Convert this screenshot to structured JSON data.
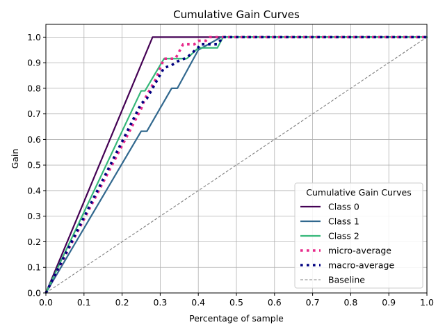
{
  "chart_data": {
    "type": "line",
    "title": "Cumulative Gain Curves",
    "xlabel": "Percentage of sample",
    "ylabel": "Gain",
    "xlim": [
      0,
      1
    ],
    "ylim": [
      0,
      1.05
    ],
    "xticks": [
      "0.0",
      "0.1",
      "0.2",
      "0.3",
      "0.4",
      "0.5",
      "0.6",
      "0.7",
      "0.8",
      "0.9",
      "1.0"
    ],
    "yticks": [
      "0.0",
      "0.1",
      "0.2",
      "0.3",
      "0.4",
      "0.5",
      "0.6",
      "0.7",
      "0.8",
      "0.9",
      "1.0"
    ],
    "xtick_values": [
      0,
      0.1,
      0.2,
      0.3,
      0.4,
      0.5,
      0.6,
      0.7,
      0.8,
      0.9,
      1.0
    ],
    "ytick_values": [
      0,
      0.1,
      0.2,
      0.3,
      0.4,
      0.5,
      0.6,
      0.7,
      0.8,
      0.9,
      1.0
    ],
    "grid": true,
    "legend": {
      "title": "Cumulative Gain Curves",
      "placement": "lower-right"
    },
    "series": [
      {
        "name": "Class 0",
        "color": "#440154",
        "style": "solid",
        "x": [
          0,
          0.28,
          1.0
        ],
        "y": [
          0,
          1.0,
          1.0
        ]
      },
      {
        "name": "Class 1",
        "color": "#31688e",
        "style": "solid",
        "x": [
          0,
          0.25,
          0.265,
          0.33,
          0.345,
          0.4,
          0.46,
          1.0
        ],
        "y": [
          0,
          0.632,
          0.632,
          0.8,
          0.8,
          0.95,
          1.0,
          1.0
        ],
        "hidden_segment_note": ""
      },
      {
        "name": "Class 2",
        "color": "#35b779",
        "style": "solid",
        "x": [
          0,
          0.25,
          0.26,
          0.31,
          0.35,
          0.37,
          0.4,
          0.41,
          0.45,
          0.465,
          1.0
        ],
        "y": [
          0,
          0.79,
          0.79,
          0.916,
          0.916,
          0.916,
          0.958,
          0.958,
          0.958,
          1.0,
          1.0
        ]
      },
      {
        "name": "micro-average",
        "color": "#e7298a",
        "style": "dotted",
        "x": [
          0,
          0.25,
          0.26,
          0.29,
          0.31,
          0.34,
          0.36,
          0.39,
          0.4,
          0.42,
          0.43,
          0.46,
          1.0
        ],
        "y": [
          0,
          0.72,
          0.76,
          0.84,
          0.916,
          0.916,
          0.972,
          0.972,
          0.986,
          0.986,
          1.0,
          1.0,
          1.0
        ]
      },
      {
        "name": "macro-average",
        "color": "#000080",
        "style": "dotted",
        "x": [
          0,
          0.25,
          0.265,
          0.31,
          0.33,
          0.345,
          0.37,
          0.4,
          0.405,
          0.42,
          0.45,
          0.465,
          1.0
        ],
        "y": [
          0,
          0.74,
          0.76,
          0.88,
          0.89,
          0.905,
          0.92,
          0.96,
          0.972,
          0.972,
          0.972,
          1.0,
          1.0
        ]
      },
      {
        "name": "Baseline",
        "color": "#808080",
        "style": "dashed",
        "x": [
          0,
          1.0
        ],
        "y": [
          0,
          1.0
        ]
      }
    ]
  }
}
